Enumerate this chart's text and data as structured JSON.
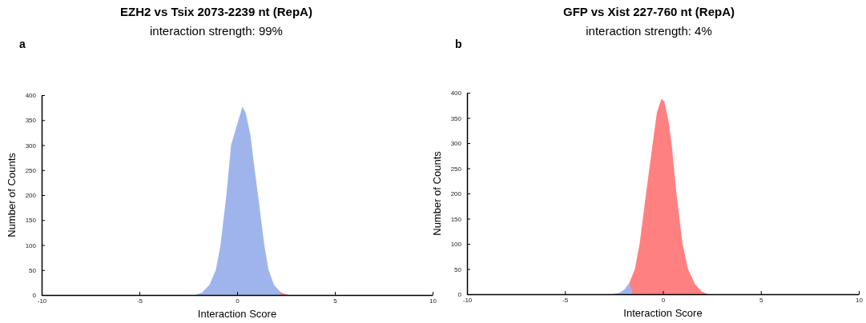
{
  "chart_data": [
    {
      "type": "area",
      "title": "EZH2 vs Tsix 2073-2239 nt (RepA)",
      "subtitle": "interaction strength: 99%",
      "annotations": [
        "a"
      ],
      "xlabel": "Interaction Score",
      "ylabel": "Number of Counts",
      "xlim": [
        -10,
        10
      ],
      "xticks": [
        -10,
        -5,
        0,
        5,
        10
      ],
      "ylim": [
        0,
        400
      ],
      "yticks": [
        0,
        50,
        100,
        150,
        200,
        250,
        300,
        350,
        400
      ],
      "series": [
        {
          "color": "#a0b4ec",
          "x": [
            -2.16,
            -1.8,
            -1.42,
            -1.09,
            -0.85,
            -0.55,
            -0.31,
            0.07,
            0.27,
            0.44,
            0.68,
            0.9,
            1.07,
            1.39,
            1.61,
            1.89,
            2.25,
            2.6
          ],
          "values": [
            0,
            5,
            20,
            50,
            100,
            200,
            300,
            350,
            377,
            365,
            320,
            250,
            200,
            100,
            50,
            20,
            5,
            0
          ]
        },
        {
          "color": "#ff8080",
          "x": [
            2.2,
            2.4,
            2.65
          ],
          "values": [
            6,
            2,
            0
          ]
        }
      ]
    },
    {
      "type": "area",
      "title": "GFP vs Xist 227-760 nt (RepA)",
      "subtitle": "interaction strength: 4%",
      "annotations": [
        "b"
      ],
      "xlabel": "Interaction Score",
      "ylabel": "Number of Counts",
      "xlim": [
        -10,
        10
      ],
      "xticks": [
        -10,
        -5,
        0,
        5,
        10
      ],
      "ylim": [
        0,
        400
      ],
      "yticks": [
        0,
        50,
        100,
        150,
        200,
        250,
        300,
        350,
        400
      ],
      "series": [
        {
          "color": "#ff8080",
          "x": [
            -1.71,
            -1.43,
            -1.19,
            -0.86,
            -0.52,
            -0.31,
            -0.08,
            0.08,
            0.3,
            0.44,
            0.69,
            1.0,
            1.28,
            1.64,
            1.99,
            2.3
          ],
          "values": [
            23,
            50,
            100,
            200,
            300,
            360,
            388,
            382,
            340,
            300,
            200,
            100,
            50,
            20,
            5,
            0
          ]
        },
        {
          "color": "#a0b4ec",
          "x": [
            -2.6,
            -2.2,
            -1.95,
            -1.71,
            -1.54
          ],
          "values": [
            0,
            3,
            10,
            23,
            0
          ]
        }
      ]
    }
  ]
}
